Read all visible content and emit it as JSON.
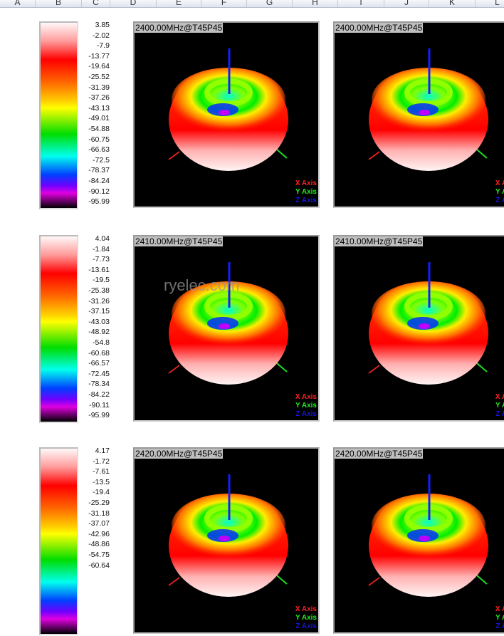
{
  "columns": [
    "A",
    "B",
    "C",
    "D",
    "E",
    "F",
    "G",
    "H",
    "I",
    "J",
    "K",
    "L"
  ],
  "watermark": "ryelec.com",
  "axis_legend": {
    "x": "X Axis",
    "y": "Y Axis",
    "z": "Z Axis"
  },
  "colors": {
    "x_axis": "#ff2020",
    "y_axis": "#20ff20",
    "z_axis": "#1010ff",
    "plot_bg": "#000000"
  },
  "rows": [
    {
      "title": "2400.00MHz@T45P45",
      "scale": [
        "3.85",
        "-2.02",
        "-7.9",
        "-13.77",
        "-19.64",
        "-25.52",
        "-31.39",
        "-37.26",
        "-43.13",
        "-49.01",
        "-54.88",
        "-60.75",
        "-66.63",
        "-72.5",
        "-78.37",
        "-84.24",
        "-90.12",
        "-95.99"
      ]
    },
    {
      "title": "2410.00MHz@T45P45",
      "scale": [
        "4.04",
        "-1.84",
        "-7.73",
        "-13.61",
        "-19.5",
        "-25.38",
        "-31.26",
        "-37.15",
        "-43.03",
        "-48.92",
        "-54.8",
        "-60.68",
        "-66.57",
        "-72.45",
        "-78.34",
        "-84.22",
        "-90.11",
        "-95.99"
      ]
    },
    {
      "title": "2420.00MHz@T45P45",
      "scale": [
        "4.17",
        "-1.72",
        "-7.61",
        "-13.5",
        "-19.4",
        "-25.29",
        "-31.18",
        "-37.07",
        "-42.96",
        "-48.86",
        "-54.75",
        "-60.64"
      ]
    }
  ]
}
